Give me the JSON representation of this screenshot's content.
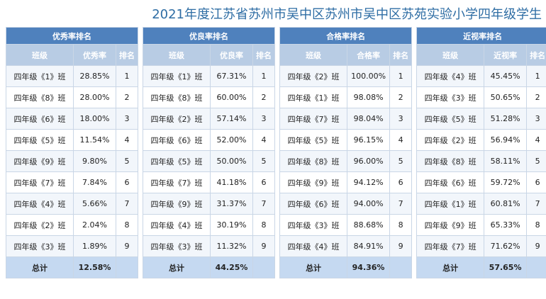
{
  "title": "2021年度江苏省苏州市吴中区苏州市吴中区苏苑实验小学四年级学生",
  "tables": [
    {
      "title": "优秀率排名",
      "headers": [
        "班级",
        "优秀率",
        "排名"
      ],
      "rows": [
        [
          "四年级《1》班",
          "28.85%",
          1
        ],
        [
          "四年级《8》班",
          "28.00%",
          2
        ],
        [
          "四年级《6》班",
          "18.00%",
          3
        ],
        [
          "四年级《5》班",
          "11.54%",
          4
        ],
        [
          "四年级《9》班",
          "9.80%",
          5
        ],
        [
          "四年级《7》班",
          "7.84%",
          6
        ],
        [
          "四年级《4》班",
          "5.66%",
          7
        ],
        [
          "四年级《2》班",
          "2.04%",
          8
        ],
        [
          "四年级《3》班",
          "1.89%",
          9
        ]
      ],
      "total": [
        "总计",
        "12.58%"
      ]
    },
    {
      "title": "优良率排名",
      "headers": [
        "班级",
        "优良率",
        "排名"
      ],
      "rows": [
        [
          "四年级《1》班",
          "67.31%",
          1
        ],
        [
          "四年级《8》班",
          "60.00%",
          2
        ],
        [
          "四年级《2》班",
          "57.14%",
          3
        ],
        [
          "四年级《6》班",
          "52.00%",
          4
        ],
        [
          "四年级《5》班",
          "50.00%",
          5
        ],
        [
          "四年级《7》班",
          "41.18%",
          6
        ],
        [
          "四年级《9》班",
          "31.37%",
          7
        ],
        [
          "四年级《4》班",
          "30.19%",
          8
        ],
        [
          "四年级《3》班",
          "11.32%",
          9
        ]
      ],
      "total": [
        "总计",
        "44.25%"
      ]
    },
    {
      "title": "合格率排名",
      "headers": [
        "班级",
        "合格率",
        "排名"
      ],
      "rows": [
        [
          "四年级《2》班",
          "100.00%",
          1
        ],
        [
          "四年级《1》班",
          "98.08%",
          2
        ],
        [
          "四年级《7》班",
          "98.04%",
          3
        ],
        [
          "四年级《5》班",
          "96.15%",
          4
        ],
        [
          "四年级《8》班",
          "96.00%",
          5
        ],
        [
          "四年级《9》班",
          "94.12%",
          6
        ],
        [
          "四年级《6》班",
          "94.00%",
          7
        ],
        [
          "四年级《3》班",
          "88.68%",
          8
        ],
        [
          "四年级《4》班",
          "84.91%",
          9
        ]
      ],
      "total": [
        "总计",
        "94.36%"
      ]
    },
    {
      "title": "近视率排名",
      "headers": [
        "班级",
        "近视率",
        "排名"
      ],
      "rows": [
        [
          "四年级《4》班",
          "45.45%",
          1
        ],
        [
          "四年级《3》班",
          "50.65%",
          2
        ],
        [
          "四年级《5》班",
          "51.28%",
          3
        ],
        [
          "四年级《2》班",
          "56.94%",
          4
        ],
        [
          "四年级《8》班",
          "58.11%",
          5
        ],
        [
          "四年级《6》班",
          "59.72%",
          6
        ],
        [
          "四年级《1》班",
          "60.81%",
          7
        ],
        [
          "四年级《9》班",
          "65.33%",
          8
        ],
        [
          "四年级《7》班",
          "71.62%",
          9
        ]
      ],
      "total": [
        "总计",
        "57.65%"
      ]
    }
  ]
}
